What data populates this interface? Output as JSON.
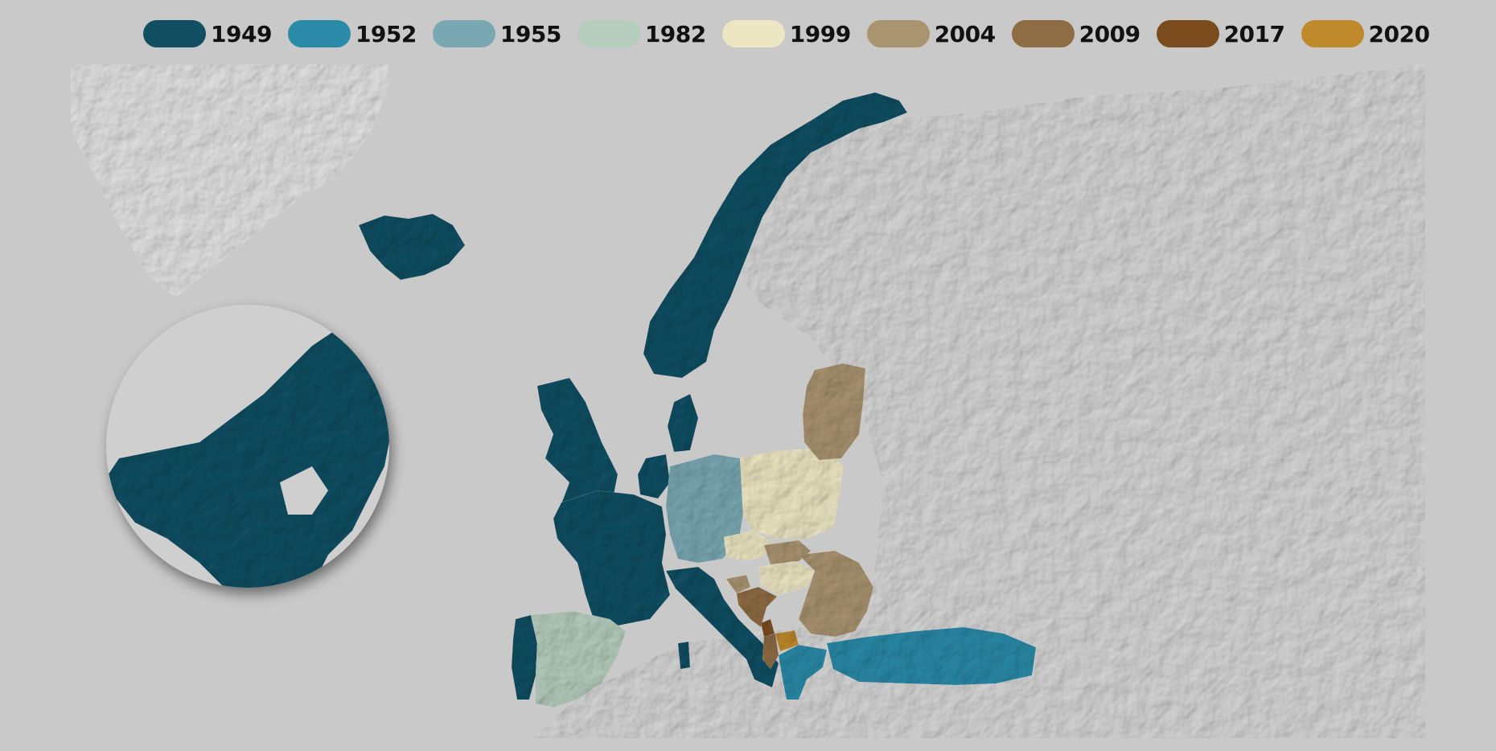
{
  "legend": {
    "items": [
      {
        "label": "1949",
        "color": "#134f63"
      },
      {
        "label": "1952",
        "color": "#2a8aa8"
      },
      {
        "label": "1955",
        "color": "#7aa8b2"
      },
      {
        "label": "1982",
        "color": "#b6cdbd"
      },
      {
        "label": "1999",
        "color": "#ece6c2"
      },
      {
        "label": "2004",
        "color": "#a99470"
      },
      {
        "label": "2009",
        "color": "#8e6c44"
      },
      {
        "label": "2017",
        "color": "#7b4d1e"
      },
      {
        "label": "2020",
        "color": "#bf8a2c"
      }
    ]
  },
  "regions": [
    {
      "name": "greenland",
      "color": "#e2e2e2"
    },
    {
      "name": "north-america",
      "color": "#134f63"
    },
    {
      "name": "iceland",
      "color": "#134f63"
    },
    {
      "name": "norway",
      "color": "#134f63"
    },
    {
      "name": "united-kingdom",
      "color": "#134f63"
    },
    {
      "name": "denmark",
      "color": "#134f63"
    },
    {
      "name": "netherlands-belgium",
      "color": "#134f63"
    },
    {
      "name": "france",
      "color": "#134f63"
    },
    {
      "name": "portugal",
      "color": "#134f63"
    },
    {
      "name": "italy",
      "color": "#134f63"
    },
    {
      "name": "greece",
      "color": "#2a8aa8"
    },
    {
      "name": "turkey",
      "color": "#2a8aa8"
    },
    {
      "name": "germany",
      "color": "#7aa8b2"
    },
    {
      "name": "spain",
      "color": "#b6cdbd"
    },
    {
      "name": "poland",
      "color": "#ece6c2"
    },
    {
      "name": "czechia",
      "color": "#ece6c2"
    },
    {
      "name": "hungary",
      "color": "#ece6c2"
    },
    {
      "name": "baltics",
      "color": "#a99470"
    },
    {
      "name": "slovakia",
      "color": "#a99470"
    },
    {
      "name": "slovenia",
      "color": "#a99470"
    },
    {
      "name": "romania-bulgaria",
      "color": "#a99470"
    },
    {
      "name": "croatia",
      "color": "#8e6c44"
    },
    {
      "name": "albania",
      "color": "#8e6c44"
    },
    {
      "name": "montenegro",
      "color": "#7b4d1e"
    },
    {
      "name": "north-macedonia",
      "color": "#bf8a2c"
    }
  ]
}
